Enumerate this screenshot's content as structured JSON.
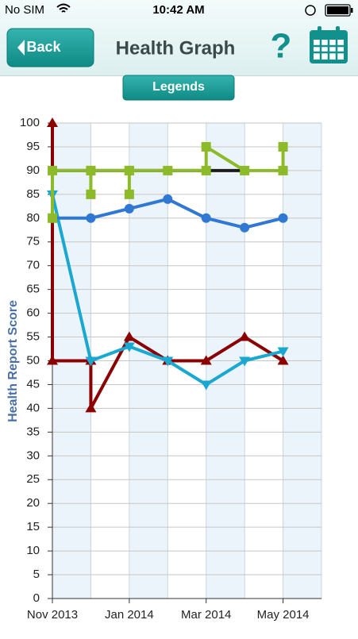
{
  "status_bar": {
    "carrier": "No SIM",
    "time": "10:42 AM"
  },
  "nav_bar": {
    "back": "Back",
    "title": "Health Graph",
    "help": "?"
  },
  "legends_button": "Legends",
  "chart_data": {
    "type": "line",
    "y_label": "Health Report Score",
    "xlim": [
      "2013-11",
      "2014-06"
    ],
    "xticks": [
      {
        "value": "2013-11",
        "label": "Nov 2013"
      },
      {
        "value": "2014-01",
        "label": "Jan 2014"
      },
      {
        "value": "2014-03",
        "label": "Mar 2014"
      },
      {
        "value": "2014-05",
        "label": "May 2014"
      }
    ],
    "ylim": [
      0,
      100
    ],
    "yticks": [
      0,
      5,
      10,
      15,
      20,
      25,
      30,
      35,
      40,
      45,
      50,
      55,
      60,
      65,
      70,
      75,
      80,
      85,
      90,
      95,
      100
    ],
    "grid": true,
    "series": [
      {
        "color": "#1c1c1c",
        "marker": "none",
        "x": [
          "2013-11",
          "2014-04"
        ],
        "values": [
          90,
          90
        ]
      },
      {
        "color": "#8b0000",
        "marker": "triangle-up",
        "x": [
          "2013-11",
          "2013-11",
          "2013-12",
          "2013-12",
          "2014-01",
          "2014-02",
          "2014-03",
          "2014-04",
          "2014-05"
        ],
        "values": [
          100,
          50,
          50,
          40,
          55,
          50,
          50,
          55,
          50
        ]
      },
      {
        "color": "#1ba8d0",
        "marker": "triangle-down",
        "x": [
          "2013-11",
          "2013-12",
          "2014-01",
          "2014-02",
          "2014-03",
          "2014-04",
          "2014-05"
        ],
        "values": [
          85,
          50,
          53,
          50,
          45,
          50,
          52
        ]
      },
      {
        "color": "#2f78d4",
        "marker": "circle",
        "x": [
          "2013-11",
          "2013-12",
          "2014-01",
          "2014-02",
          "2014-03",
          "2014-04",
          "2014-05"
        ],
        "values": [
          80,
          80,
          82,
          84,
          80,
          78,
          80
        ]
      },
      {
        "color": "#8cba28",
        "marker": "square",
        "x": [
          "2013-11",
          "2013-11",
          "2013-12",
          "2013-12",
          "2013-12",
          "2014-01",
          "2014-01",
          "2014-01",
          "2014-02",
          "2014-03",
          "2014-03",
          "2014-04",
          "2014-05",
          "2014-05"
        ],
        "values": [
          80,
          90,
          90,
          85,
          90,
          90,
          85,
          90,
          90,
          90,
          95,
          90,
          90,
          95
        ]
      }
    ]
  }
}
